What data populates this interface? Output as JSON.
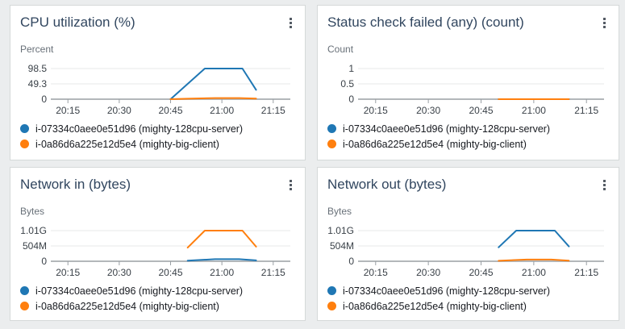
{
  "page": {
    "background": "#ebedee",
    "panel_border": "#d5d9d9",
    "title_color": "#31465f"
  },
  "colors": {
    "series_blue": "#1f77b4",
    "series_orange": "#ff7f0e",
    "gridline": "#e7e9e9",
    "baseline": "#b3b7ba",
    "tick": "#9aa0a5"
  },
  "chart_data": [
    {
      "type": "line",
      "title": "CPU utilization (%)",
      "unit": "Percent",
      "yticks": [
        "98.5",
        "49.3",
        "0"
      ],
      "ymax": 98.5,
      "xticks": [
        "20:15",
        "20:30",
        "20:45",
        "21:00",
        "21:15"
      ],
      "x_domain": [
        "20:10",
        "21:20"
      ],
      "grid": true,
      "legend_position": "bottom",
      "series": [
        {
          "name": "i-07334c0aee0e51d96 (mighty-128cpu-server)",
          "color": "#1f77b4",
          "points": [
            [
              "20:45",
              0
            ],
            [
              "20:55",
              98.5
            ],
            [
              "21:06",
              98.5
            ],
            [
              "21:10",
              30
            ]
          ]
        },
        {
          "name": "i-0a86d6a225e12d5e4 (mighty-big-client)",
          "color": "#ff7f0e",
          "points": [
            [
              "20:45",
              0
            ],
            [
              "20:50",
              1.5
            ],
            [
              "20:58",
              3.5
            ],
            [
              "21:05",
              3.5
            ],
            [
              "21:10",
              2
            ]
          ]
        }
      ]
    },
    {
      "type": "line",
      "title": "Status check failed (any) (count)",
      "unit": "Count",
      "yticks": [
        "1",
        "0.5",
        "0"
      ],
      "ymax": 1,
      "xticks": [
        "20:15",
        "20:30",
        "20:45",
        "21:00",
        "21:15"
      ],
      "x_domain": [
        "20:10",
        "21:20"
      ],
      "grid": true,
      "legend_position": "bottom",
      "series": [
        {
          "name": "i-07334c0aee0e51d96 (mighty-128cpu-server)",
          "color": "#1f77b4",
          "points": [
            [
              "20:50",
              0
            ],
            [
              "21:10",
              0
            ]
          ]
        },
        {
          "name": "i-0a86d6a225e12d5e4 (mighty-big-client)",
          "color": "#ff7f0e",
          "points": [
            [
              "20:50",
              0
            ],
            [
              "21:10",
              0
            ]
          ]
        }
      ]
    },
    {
      "type": "line",
      "title": "Network in (bytes)",
      "unit": "Bytes",
      "yticks": [
        "1.01G",
        "504M",
        "0"
      ],
      "ymax": 1010000000,
      "xticks": [
        "20:15",
        "20:30",
        "20:45",
        "21:00",
        "21:15"
      ],
      "x_domain": [
        "20:10",
        "21:20"
      ],
      "grid": true,
      "legend_position": "bottom",
      "series": [
        {
          "name": "i-07334c0aee0e51d96 (mighty-128cpu-server)",
          "color": "#1f77b4",
          "points": [
            [
              "20:50",
              20000000
            ],
            [
              "20:58",
              70000000
            ],
            [
              "21:05",
              70000000
            ],
            [
              "21:10",
              30000000
            ]
          ]
        },
        {
          "name": "i-0a86d6a225e12d5e4 (mighty-big-client)",
          "color": "#ff7f0e",
          "points": [
            [
              "20:50",
              450000000
            ],
            [
              "20:55",
              1010000000
            ],
            [
              "21:06",
              1010000000
            ],
            [
              "21:10",
              480000000
            ]
          ]
        }
      ]
    },
    {
      "type": "line",
      "title": "Network out (bytes)",
      "unit": "Bytes",
      "yticks": [
        "1.01G",
        "504M",
        "0"
      ],
      "ymax": 1010000000,
      "xticks": [
        "20:15",
        "20:30",
        "20:45",
        "21:00",
        "21:15"
      ],
      "x_domain": [
        "20:10",
        "21:20"
      ],
      "grid": true,
      "legend_position": "bottom",
      "series": [
        {
          "name": "i-07334c0aee0e51d96 (mighty-128cpu-server)",
          "color": "#1f77b4",
          "points": [
            [
              "20:50",
              460000000
            ],
            [
              "20:55",
              1010000000
            ],
            [
              "21:06",
              1010000000
            ],
            [
              "21:10",
              490000000
            ]
          ]
        },
        {
          "name": "i-0a86d6a225e12d5e4 (mighty-big-client)",
          "color": "#ff7f0e",
          "points": [
            [
              "20:50",
              15000000
            ],
            [
              "20:58",
              55000000
            ],
            [
              "21:05",
              55000000
            ],
            [
              "21:10",
              20000000
            ]
          ]
        }
      ]
    }
  ]
}
